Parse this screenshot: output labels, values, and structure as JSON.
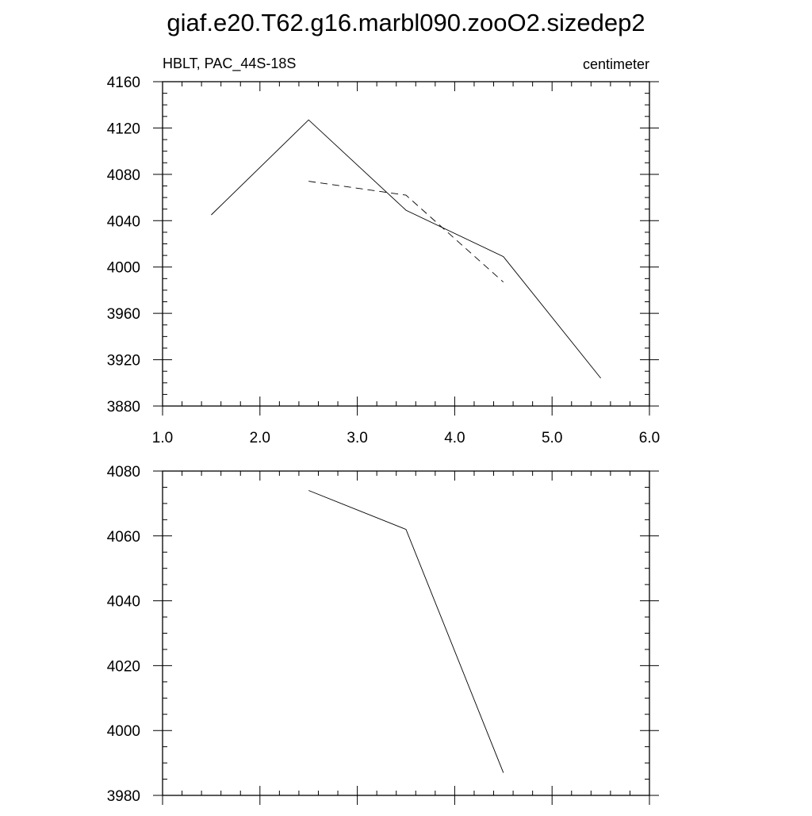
{
  "title": "giaf.e20.T62.g16.marbl090.zooO2.sizedep2",
  "chart_data": [
    {
      "type": "line",
      "left_label": "HBLT, PAC_44S-18S",
      "right_label": "centimeter",
      "xlim": [
        1.0,
        6.0
      ],
      "ylim": [
        3880,
        4160
      ],
      "xticks": [
        "1.0",
        "2.0",
        "3.0",
        "4.0",
        "5.0",
        "6.0"
      ],
      "yticks": [
        "3880",
        "3920",
        "3960",
        "4000",
        "4040",
        "4080",
        "4120",
        "4160"
      ],
      "grid": false,
      "series": [
        {
          "style": "solid",
          "x": [
            1.5,
            2.5,
            3.5,
            4.5,
            5.5
          ],
          "y": [
            4045,
            4127,
            4049,
            4009,
            3904
          ]
        },
        {
          "style": "dashed",
          "x": [
            2.5,
            3.5,
            4.5
          ],
          "y": [
            4074,
            4062,
            3987
          ]
        }
      ]
    },
    {
      "type": "line",
      "xlim": [
        1.0,
        6.0
      ],
      "ylim": [
        3980,
        4080
      ],
      "xticks": [],
      "yticks": [
        "3980",
        "4000",
        "4020",
        "4040",
        "4060",
        "4080"
      ],
      "grid": false,
      "series": [
        {
          "style": "solid",
          "x": [
            2.5,
            3.5,
            4.5
          ],
          "y": [
            4074,
            4062,
            3987
          ]
        }
      ]
    }
  ]
}
